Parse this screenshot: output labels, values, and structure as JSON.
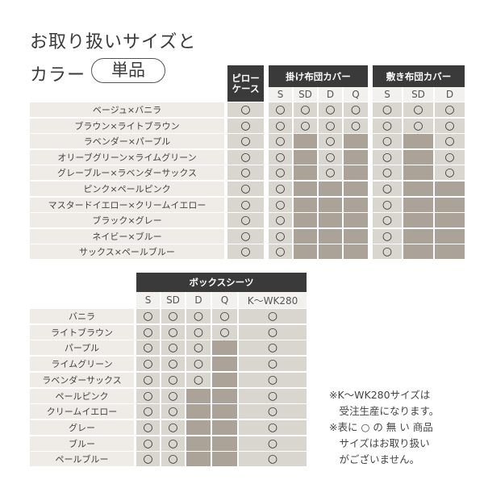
{
  "title": {
    "line1": "お取り扱いサイズと",
    "line2": "カラー",
    "badge": "単品"
  },
  "top_table": {
    "groups": [
      {
        "label": "ピロー\nケース",
        "sizes": []
      },
      {
        "label": "掛け布団カバー",
        "sizes": [
          "S",
          "SD",
          "D",
          "Q"
        ]
      },
      {
        "label": "敷き布団カバー",
        "sizes": [
          "S",
          "SD",
          "D"
        ]
      }
    ],
    "rows": [
      {
        "color": "ベージュ×バニラ",
        "cells": [
          "○",
          "○",
          "○",
          "○",
          "○",
          "○",
          "○",
          "○"
        ]
      },
      {
        "color": "ブラウン×ライトブラウン",
        "cells": [
          "○",
          "○",
          "○",
          "○",
          "○",
          "○",
          "○",
          "○"
        ]
      },
      {
        "color": "ラベンダー×パープル",
        "cells": [
          "○",
          "○",
          "",
          "○",
          "",
          "○",
          "",
          "○"
        ]
      },
      {
        "color": "オリーブグリーン×ライムグリーン",
        "cells": [
          "○",
          "○",
          "",
          "○",
          "",
          "○",
          "",
          "○"
        ]
      },
      {
        "color": "グレーブルー×ラベンダーサックス",
        "cells": [
          "○",
          "○",
          "",
          "○",
          "",
          "○",
          "",
          "○"
        ]
      },
      {
        "color": "ピンク×ペールピンク",
        "cells": [
          "○",
          "○",
          "",
          "",
          "",
          "○",
          "",
          ""
        ]
      },
      {
        "color": "マスタードイエロー×クリームイエロー",
        "cells": [
          "○",
          "○",
          "",
          "",
          "",
          "○",
          "",
          ""
        ]
      },
      {
        "color": "ブラック×グレー",
        "cells": [
          "○",
          "○",
          "",
          "",
          "",
          "○",
          "",
          ""
        ]
      },
      {
        "color": "ネイビー×ブルー",
        "cells": [
          "○",
          "○",
          "",
          "",
          "",
          "○",
          "",
          ""
        ]
      },
      {
        "color": "サックス×ペールブルー",
        "cells": [
          "○",
          "○",
          "",
          "",
          "",
          "○",
          "",
          ""
        ]
      }
    ]
  },
  "bottom_table": {
    "group": "ボックスシーツ",
    "sizes": [
      "S",
      "SD",
      "D",
      "Q",
      "K〜WK280"
    ],
    "rows": [
      {
        "color": "バニラ",
        "cells": [
          "○",
          "○",
          "○",
          "○",
          "○"
        ]
      },
      {
        "color": "ライトブラウン",
        "cells": [
          "○",
          "○",
          "○",
          "○",
          "○"
        ]
      },
      {
        "color": "パープル",
        "cells": [
          "○",
          "○",
          "○",
          "",
          "○"
        ]
      },
      {
        "color": "ライムグリーン",
        "cells": [
          "○",
          "○",
          "○",
          "",
          "○"
        ]
      },
      {
        "color": "ラベンダーサックス",
        "cells": [
          "○",
          "○",
          "○",
          "",
          "○"
        ]
      },
      {
        "color": "ペールピンク",
        "cells": [
          "○",
          "○",
          "",
          "",
          "○"
        ]
      },
      {
        "color": "クリームイエロー",
        "cells": [
          "○",
          "○",
          "",
          "",
          "○"
        ]
      },
      {
        "color": "グレー",
        "cells": [
          "○",
          "○",
          "",
          "",
          "○"
        ]
      },
      {
        "color": "ブルー",
        "cells": [
          "○",
          "○",
          "",
          "",
          "○"
        ]
      },
      {
        "color": "ペールブルー",
        "cells": [
          "○",
          "○",
          "",
          "",
          "○"
        ]
      }
    ]
  },
  "notes": "※K〜WK280サイズは\n　受注生産になります。\n※表に ○ の 無 い 商品\n　サイズはお取り扱い\n　がございません。",
  "colors": {
    "header": "#3a3a3a",
    "available": "#d9d5cf",
    "unavailable": "#aba298",
    "label_bg": "#efebe6"
  }
}
